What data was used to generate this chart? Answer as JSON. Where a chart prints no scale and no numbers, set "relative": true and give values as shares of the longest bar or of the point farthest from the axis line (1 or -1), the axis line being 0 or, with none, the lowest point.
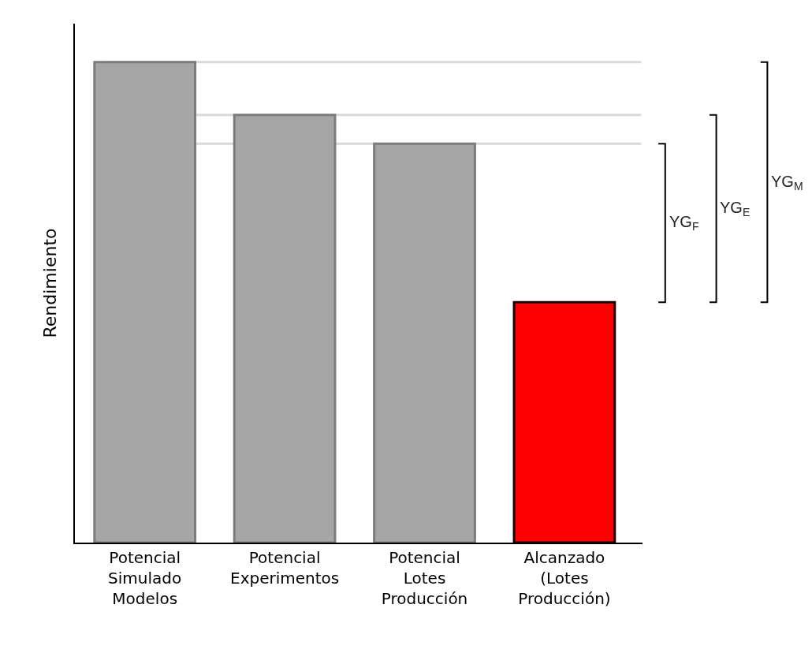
{
  "chart_data": {
    "type": "bar",
    "relative": true,
    "ylabel": "Rendimiento",
    "categories": [
      "Potencial\nSimulado\nModelos",
      "Potencial\nExperimentos",
      "Potencial\nLotes\nProducción",
      "Alcanzado\n(Lotes\nProducción)"
    ],
    "values": [
      1,
      0.89,
      0.83,
      0.5
    ],
    "colors": [
      "#a6a6a6",
      "#a6a6a6",
      "#a6a6a6",
      "#ff0000"
    ],
    "ref_lines": [
      {
        "axis": "y",
        "value": 1,
        "color": "#d9d9d9"
      },
      {
        "axis": "y",
        "value": 0.89,
        "color": "#d9d9d9"
      },
      {
        "axis": "y",
        "value": 0.83,
        "color": "#d9d9d9"
      }
    ],
    "annotations": [
      "YG$_{F}$",
      "YG$_{E}$",
      "YG$_{M}$"
    ]
  }
}
